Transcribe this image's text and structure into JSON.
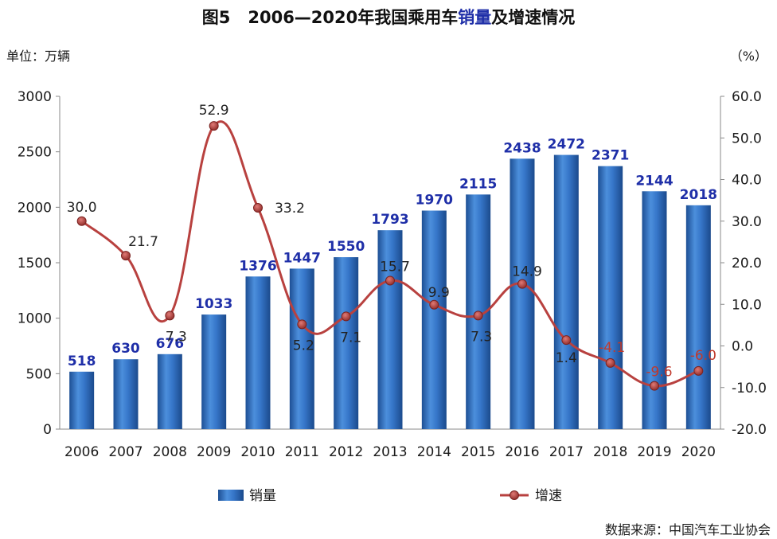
{
  "title": {
    "figure_no": "图5",
    "text_before": "2006—2020年我国乘用车",
    "text_highlight": "销量",
    "text_after": "及增速情况"
  },
  "unit_left": "单位：万辆",
  "unit_right": "（%）",
  "source": "数据来源：中国汽车工业协会",
  "colors": {
    "bar": "#2e6fc4",
    "line": "#b8413f",
    "highlight": "#1f2fa8"
  },
  "chart_data": {
    "type": "bar",
    "categories": [
      "2006",
      "2007",
      "2008",
      "2009",
      "2010",
      "2011",
      "2012",
      "2013",
      "2014",
      "2015",
      "2016",
      "2017",
      "2018",
      "2019",
      "2020"
    ],
    "series": [
      {
        "name": "销量",
        "type": "bar",
        "axis": "left",
        "values": [
          518,
          630,
          676,
          1033,
          1376,
          1447,
          1550,
          1793,
          1970,
          2115,
          2438,
          2472,
          2371,
          2144,
          2018
        ]
      },
      {
        "name": "增速",
        "type": "line",
        "axis": "right",
        "values": [
          30.0,
          21.7,
          7.3,
          52.9,
          33.2,
          5.2,
          7.1,
          15.7,
          9.9,
          7.3,
          14.9,
          1.4,
          -4.1,
          -9.6,
          -6.0
        ]
      }
    ],
    "left_axis": {
      "ylim": [
        0,
        3000
      ],
      "ticks": [
        "0",
        "500",
        "1000",
        "1500",
        "2000",
        "2500",
        "3000"
      ]
    },
    "right_axis": {
      "ylim": [
        -20,
        60
      ],
      "ticks": [
        "-20.0",
        "-10.0",
        "0.0",
        "10.0",
        "20.0",
        "30.0",
        "40.0",
        "50.0",
        "60.0"
      ]
    },
    "legend": [
      {
        "name": "销量",
        "kind": "bar"
      },
      {
        "name": "增速",
        "kind": "line"
      }
    ],
    "legend_position": "bottom",
    "grid": false
  }
}
